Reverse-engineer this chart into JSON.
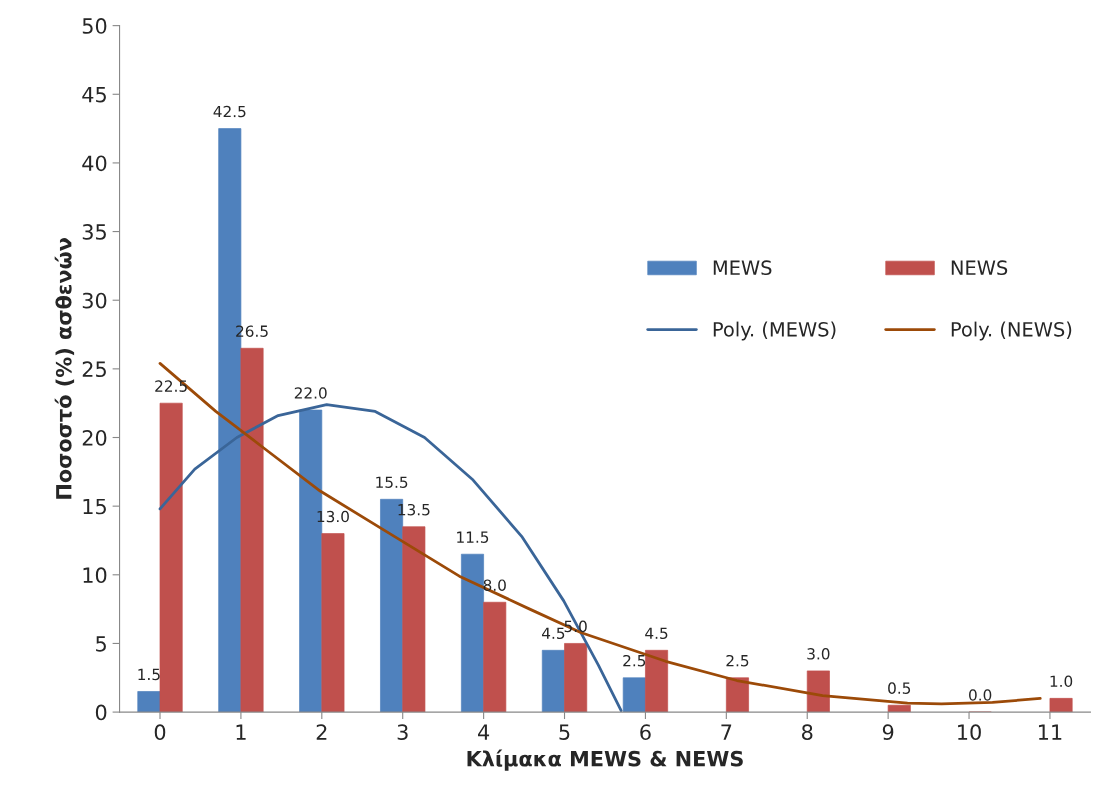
{
  "chart_data": {
    "type": "bar",
    "xlabel": "Κλίμακα MEWS & NEWS",
    "ylabel": "Ποσοστό (%) ασθενών",
    "x": [
      0,
      1,
      2,
      3,
      4,
      5,
      6,
      7,
      8,
      9,
      10,
      11
    ],
    "xlim": [
      -0.5,
      11.5
    ],
    "xticks": [
      0,
      1,
      2,
      3,
      4,
      5,
      6,
      7,
      8,
      9,
      10,
      11
    ],
    "series": [
      {
        "name": "MEWS",
        "color": "#4f81bd",
        "values": [
          1.5,
          42.5,
          22.0,
          15.5,
          11.5,
          4.5,
          2.5,
          null,
          null,
          null,
          null,
          null
        ],
        "value_labels": [
          "1.5",
          "42.5",
          "22.0",
          "15.5",
          "11.5",
          "4.5",
          "2.5",
          null,
          null,
          null,
          null,
          null
        ]
      },
      {
        "name": "NEWS",
        "color": "#c0504d",
        "values": [
          22.5,
          26.5,
          13.0,
          13.5,
          8.0,
          5.0,
          4.5,
          2.5,
          3.0,
          0.5,
          0.0,
          1.0
        ],
        "value_labels": [
          "22.5",
          "26.5",
          "13.0",
          "13.5",
          "8.0",
          "5.0",
          "4.5",
          "2.5",
          "3.0",
          "0.5",
          "0.0",
          "1.0"
        ]
      },
      {
        "name": "Poly. (MEWS)",
        "type": "line",
        "color": "#3a6598",
        "x": [
          0,
          0.43,
          0.95,
          1.46,
          2.06,
          2.66,
          3.27,
          3.87,
          4.47,
          4.99,
          5.42,
          5.7
        ],
        "values": [
          14.8,
          17.7,
          20.0,
          21.6,
          22.4,
          21.9,
          20.0,
          16.9,
          12.8,
          8.1,
          3.4,
          0.1
        ]
      },
      {
        "name": "Poly. (NEWS)",
        "type": "line",
        "color": "#9c4a08",
        "x": [
          0,
          0.69,
          1.29,
          1.98,
          2.84,
          3.7,
          4.57,
          5.2,
          6.25,
          7.13,
          8.19,
          9.24,
          9.66,
          10.29,
          10.88
        ],
        "values": [
          25.4,
          21.9,
          19.2,
          16.1,
          13.0,
          9.9,
          7.5,
          5.8,
          3.7,
          2.3,
          1.2,
          0.65,
          0.6,
          0.7,
          1.0
        ]
      }
    ],
    "ylim": [
      0,
      50
    ],
    "yticks": [
      0,
      5,
      10,
      15,
      20,
      25,
      30,
      35,
      40,
      45,
      50
    ],
    "legend": "right",
    "grid": false
  }
}
